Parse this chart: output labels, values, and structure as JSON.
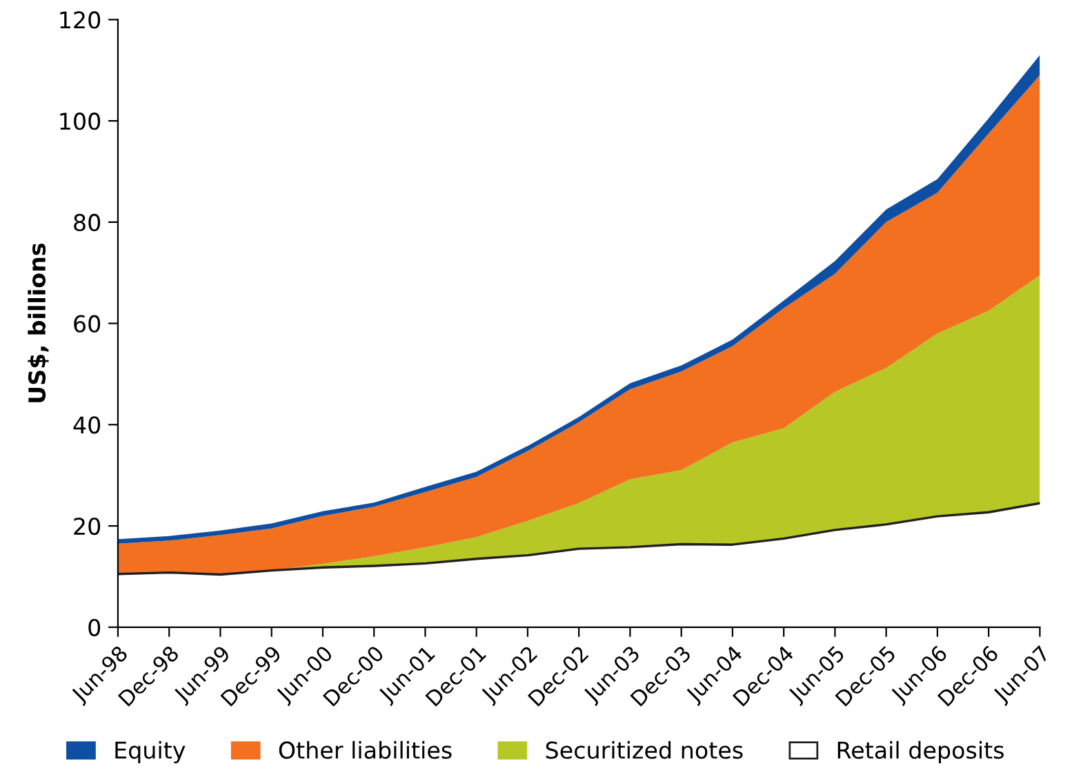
{
  "chart_data": {
    "type": "area",
    "stacked": true,
    "ylabel": "US$, billions",
    "categories": [
      "Jun-98",
      "Dec-98",
      "Jun-99",
      "Dec-99",
      "Jun-00",
      "Dec-00",
      "Jun-01",
      "Dec-01",
      "Jun-02",
      "Dec-02",
      "Jun-03",
      "Dec-03",
      "Jun-04",
      "Dec-04",
      "Jun-05",
      "Dec-05",
      "Jun-06",
      "Dec-06",
      "Jun-07"
    ],
    "series": [
      {
        "name": "Retail deposits",
        "color": "#ffffff",
        "values": [
          10.5,
          10.8,
          10.4,
          11.2,
          11.8,
          12.1,
          12.6,
          13.5,
          14.2,
          15.5,
          15.8,
          16.4,
          16.3,
          17.5,
          19.2,
          20.3,
          21.9,
          22.7,
          24.5
        ]
      },
      {
        "name": "Securitized notes",
        "color": "#b7c826",
        "values": [
          0,
          0,
          0,
          0,
          0.7,
          1.9,
          3.2,
          4.3,
          6.8,
          9.0,
          13.4,
          14.6,
          20.2,
          21.8,
          27.3,
          30.9,
          36.1,
          39.8,
          45
        ]
      },
      {
        "name": "Other liabilities",
        "color": "#f37021",
        "values": [
          6.0,
          6.3,
          7.8,
          8.3,
          9.5,
          9.8,
          10.9,
          11.9,
          13.8,
          16,
          17.8,
          19.5,
          19,
          23.7,
          23.3,
          28.8,
          27.8,
          35,
          39.5
        ]
      },
      {
        "name": "Equity",
        "color": "#0f4fa3",
        "values": [
          0.9,
          0.9,
          0.9,
          1.0,
          0.9,
          0.8,
          1.0,
          1.0,
          1.0,
          1.0,
          1.2,
          1.2,
          1.3,
          1.5,
          2.5,
          2.5,
          2.7,
          3.0,
          4.0
        ]
      }
    ],
    "ylim": [
      0,
      120
    ],
    "yticks": [
      0,
      20,
      40,
      60,
      80,
      100,
      120
    ],
    "grid": false,
    "legend": "bottom"
  }
}
